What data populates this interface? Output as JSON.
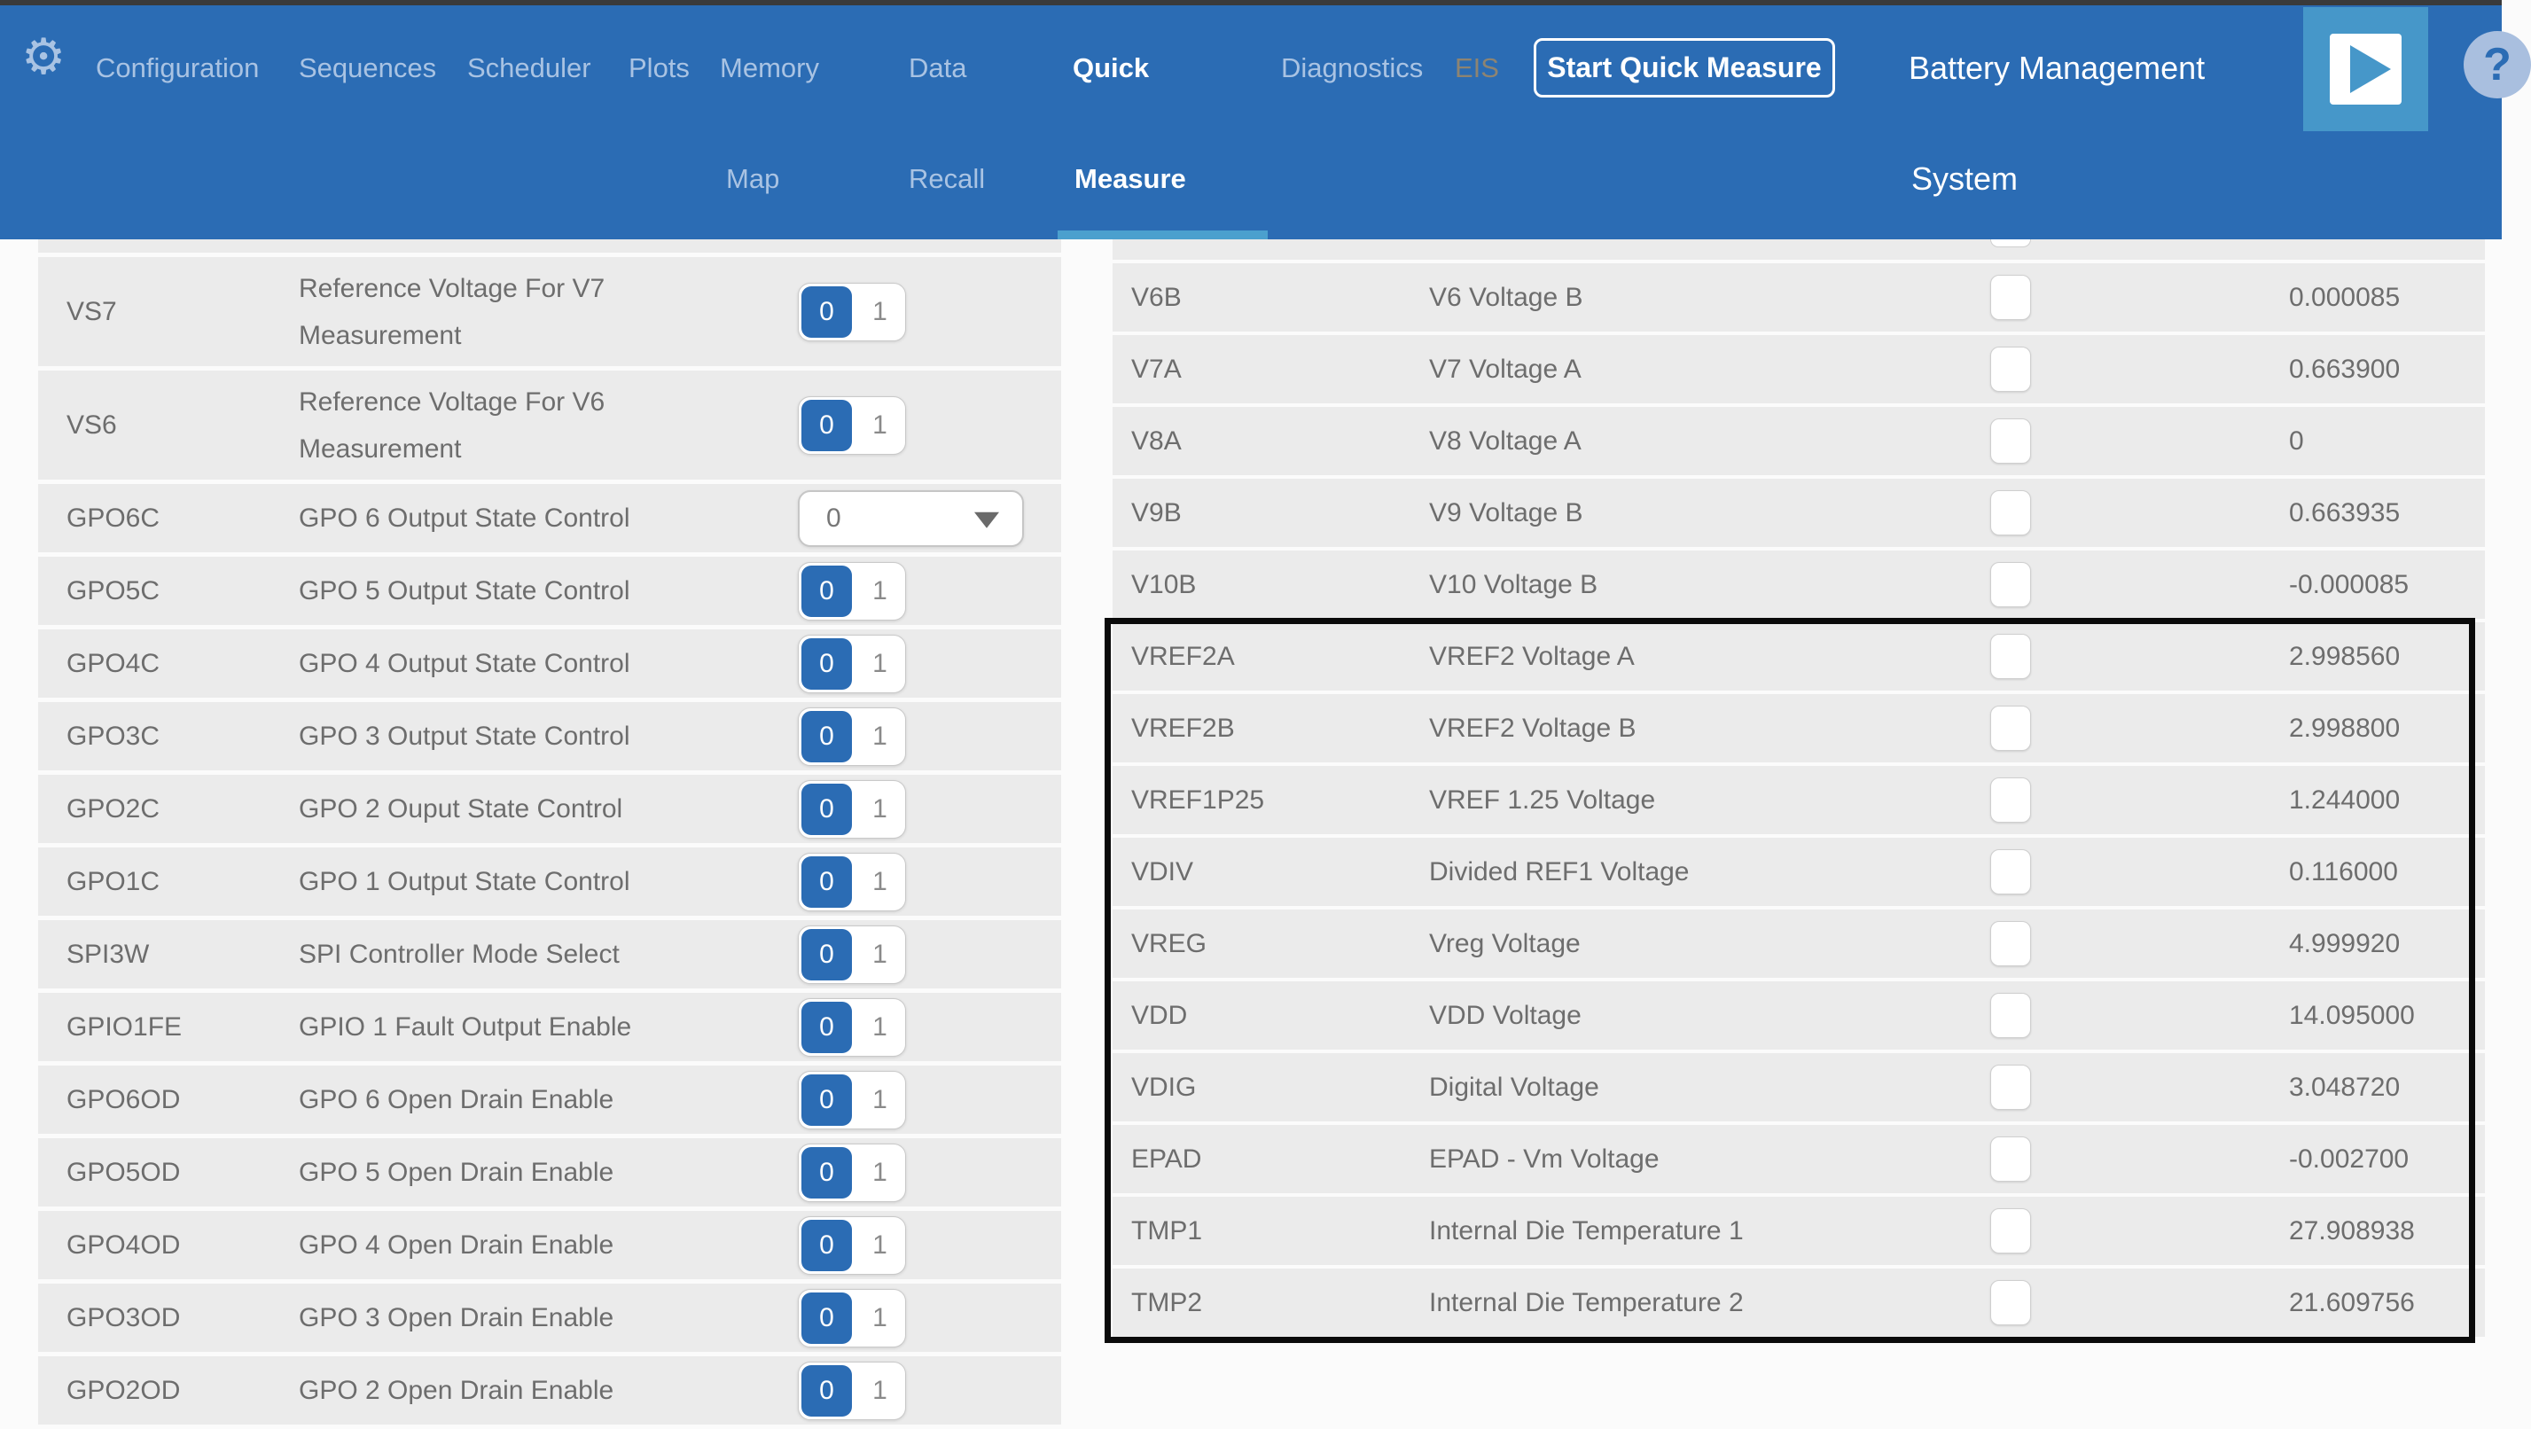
{
  "header": {
    "gear_icon": "⚙",
    "nav": {
      "configuration": "Configuration",
      "sequences": "Sequences",
      "scheduler": "Scheduler",
      "plots": "Plots",
      "memory_line1": "Memory",
      "memory_line2": "Map",
      "data_line1": "Data",
      "data_line2": "Recall",
      "quick_line1": "Quick",
      "quick_line2": "Measure",
      "diagnostics": "Diagnostics",
      "eis": "EIS",
      "active_tab": "Quick Measure",
      "disabled_tab": "EIS"
    },
    "start_button_label": "Start Quick Measure",
    "title_line1": "Battery Management",
    "title_line2": "System",
    "help_icon": "?",
    "run_icon": "play-triangle"
  },
  "colors": {
    "header_bg": "#2b6cb4",
    "tab_indicator": "#4ba0ce",
    "run_button_bg": "#4697c9",
    "row_bg": "#ebebeb",
    "row_text": "#6d6d6d",
    "toggle_accent": "#2b6cb4",
    "highlight_border": "#0a0a0a"
  },
  "left_table": {
    "toggle_options": [
      "0",
      "1"
    ],
    "toggle_selected": "0",
    "rows": [
      {
        "type": "sliver"
      },
      {
        "type": "row",
        "tall": true,
        "name": "VS7",
        "desc_lines": [
          "Reference Voltage For V7",
          "Measurement"
        ],
        "control": "toggle",
        "value": "0"
      },
      {
        "type": "row",
        "tall": true,
        "name": "VS6",
        "desc_lines": [
          "Reference Voltage For V6",
          "Measurement"
        ],
        "control": "toggle",
        "value": "0"
      },
      {
        "type": "row",
        "tall": false,
        "name": "GPO6C",
        "desc_lines": [
          "GPO 6 Output State Control"
        ],
        "control": "dropdown",
        "value": "0"
      },
      {
        "type": "row",
        "tall": false,
        "name": "GPO5C",
        "desc_lines": [
          "GPO 5 Output State Control"
        ],
        "control": "toggle",
        "value": "0"
      },
      {
        "type": "row",
        "tall": false,
        "name": "GPO4C",
        "desc_lines": [
          "GPO 4 Output State Control"
        ],
        "control": "toggle",
        "value": "0"
      },
      {
        "type": "row",
        "tall": false,
        "name": "GPO3C",
        "desc_lines": [
          "GPO 3 Output State Control"
        ],
        "control": "toggle",
        "value": "0"
      },
      {
        "type": "row",
        "tall": false,
        "name": "GPO2C",
        "desc_lines": [
          "GPO 2 Ouput State Control"
        ],
        "control": "toggle",
        "value": "0"
      },
      {
        "type": "row",
        "tall": false,
        "name": "GPO1C",
        "desc_lines": [
          "GPO 1 Output State Control"
        ],
        "control": "toggle",
        "value": "0"
      },
      {
        "type": "row",
        "tall": false,
        "name": "SPI3W",
        "desc_lines": [
          "SPI Controller Mode Select"
        ],
        "control": "toggle",
        "value": "0"
      },
      {
        "type": "row",
        "tall": false,
        "name": "GPIO1FE",
        "desc_lines": [
          "GPIO 1 Fault Output Enable"
        ],
        "control": "toggle",
        "value": "0"
      },
      {
        "type": "row",
        "tall": false,
        "name": "GPO6OD",
        "desc_lines": [
          "GPO 6 Open Drain Enable"
        ],
        "control": "toggle",
        "value": "0"
      },
      {
        "type": "row",
        "tall": false,
        "name": "GPO5OD",
        "desc_lines": [
          "GPO 5 Open Drain Enable"
        ],
        "control": "toggle",
        "value": "0"
      },
      {
        "type": "row",
        "tall": false,
        "name": "GPO4OD",
        "desc_lines": [
          "GPO 4 Open Drain Enable"
        ],
        "control": "toggle",
        "value": "0"
      },
      {
        "type": "row",
        "tall": false,
        "name": "GPO3OD",
        "desc_lines": [
          "GPO 3 Open Drain Enable"
        ],
        "control": "toggle",
        "value": "0"
      },
      {
        "type": "row",
        "tall": false,
        "name": "GPO2OD",
        "desc_lines": [
          "GPO 2 Open Drain Enable"
        ],
        "control": "toggle",
        "value": "0"
      }
    ]
  },
  "right_table": {
    "checkbox_checked": false,
    "highlight": {
      "from": "VREF2A",
      "to": "TMP2"
    },
    "rows": [
      {
        "type": "sliver"
      },
      {
        "type": "row",
        "name": "V6B",
        "desc": "V6 Voltage B",
        "value": "0.000085"
      },
      {
        "type": "row",
        "name": "V7A",
        "desc": "V7 Voltage A",
        "value": "0.663900"
      },
      {
        "type": "row",
        "name": "V8A",
        "desc": "V8 Voltage A",
        "value": "0"
      },
      {
        "type": "row",
        "name": "V9B",
        "desc": "V9 Voltage B",
        "value": "0.663935"
      },
      {
        "type": "row",
        "name": "V10B",
        "desc": "V10 Voltage B",
        "value": "-0.000085"
      },
      {
        "type": "row",
        "name": "VREF2A",
        "desc": "VREF2 Voltage A",
        "value": "2.998560"
      },
      {
        "type": "row",
        "name": "VREF2B",
        "desc": "VREF2 Voltage B",
        "value": "2.998800"
      },
      {
        "type": "row",
        "name": "VREF1P25",
        "desc": "VREF 1.25 Voltage",
        "value": "1.244000"
      },
      {
        "type": "row",
        "name": "VDIV",
        "desc": "Divided REF1 Voltage",
        "value": "0.116000"
      },
      {
        "type": "row",
        "name": "VREG",
        "desc": "Vreg Voltage",
        "value": "4.999920"
      },
      {
        "type": "row",
        "name": "VDD",
        "desc": "VDD Voltage",
        "value": "14.095000"
      },
      {
        "type": "row",
        "name": "VDIG",
        "desc": "Digital Voltage",
        "value": "3.048720"
      },
      {
        "type": "row",
        "name": "EPAD",
        "desc": "EPAD - Vm Voltage",
        "value": "-0.002700"
      },
      {
        "type": "row",
        "name": "TMP1",
        "desc": "Internal Die Temperature 1",
        "value": "27.908938"
      },
      {
        "type": "row",
        "name": "TMP2",
        "desc": "Internal Die Temperature 2",
        "value": "21.609756"
      }
    ]
  }
}
